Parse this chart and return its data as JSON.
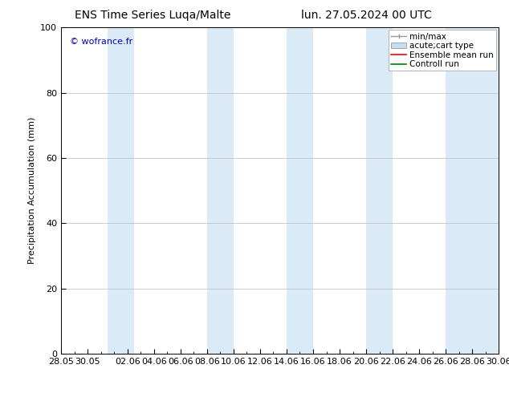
{
  "title_left": "ENS Time Series Luqa/Malte",
  "title_right": "lun. 27.05.2024 00 UTC",
  "ylabel": "Precipitation Accumulation (mm)",
  "watermark": "© wofrance.fr",
  "watermark_color": "#0000cc",
  "ylim": [
    0,
    100
  ],
  "yticks": [
    0,
    20,
    40,
    60,
    80,
    100
  ],
  "xtick_labels": [
    "28.05",
    "30.05",
    "02.06",
    "04.06",
    "06.06",
    "08.06",
    "10.06",
    "12.06",
    "14.06",
    "16.06",
    "18.06",
    "20.06",
    "22.06",
    "24.06",
    "26.06",
    "28.06",
    "30.06"
  ],
  "xtick_positions": [
    0,
    2,
    5,
    7,
    9,
    11,
    13,
    15,
    17,
    19,
    21,
    23,
    25,
    27,
    29,
    31,
    33
  ],
  "x_start": 0,
  "x_end": 33,
  "shade_band_color": "#daeaf7",
  "shade_band_alpha": 1.0,
  "shade_spans": [
    [
      3.5,
      5.5
    ],
    [
      11.0,
      13.0
    ],
    [
      17.0,
      19.0
    ],
    [
      23.0,
      25.0
    ],
    [
      29.0,
      33.0
    ]
  ],
  "background_color": "#ffffff",
  "legend_entries": [
    "min/max",
    "acute;cart type",
    "Ensemble mean run",
    "Controll run"
  ],
  "grid_color": "#bbbbbb",
  "font_size": 8,
  "title_font_size": 10
}
